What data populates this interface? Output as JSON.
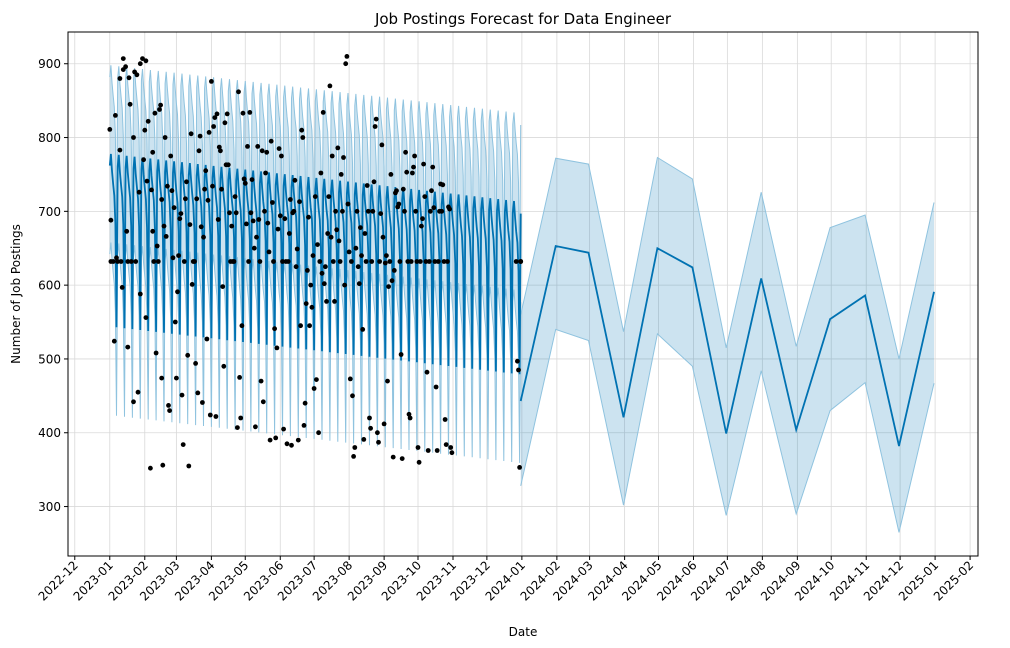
{
  "chart_data": {
    "type": "line",
    "title": "Job Postings Forecast for Data Engineer",
    "xlabel": "Date",
    "ylabel": "Number of Job Postings",
    "xlim": [
      "2022-11-25",
      "2025-02-08"
    ],
    "ylim": [
      233,
      943
    ],
    "grid": true,
    "x_ticks": [
      "2022-12",
      "2023-01",
      "2023-02",
      "2023-03",
      "2023-04",
      "2023-05",
      "2023-06",
      "2023-07",
      "2023-08",
      "2023-09",
      "2023-10",
      "2023-11",
      "2023-12",
      "2024-01",
      "2024-02",
      "2024-03",
      "2024-04",
      "2024-05",
      "2024-06",
      "2024-07",
      "2024-08",
      "2024-09",
      "2024-10",
      "2024-11",
      "2024-12",
      "2025-01",
      "2025-02"
    ],
    "y_ticks": [
      300,
      400,
      500,
      600,
      700,
      800,
      900
    ],
    "colors": {
      "forecast_line": "#0072b2",
      "interval_fill": "#0072b2",
      "points": "#000000",
      "grid": "#d9d9d9"
    },
    "history_forecast": {
      "start": "2023-01-01",
      "end": "2023-12-31",
      "weekday_offsets": [
        117,
        133,
        110,
        92,
        77,
        39,
        -101
      ],
      "trend_start": 645,
      "trend_end": 580,
      "interval_halfwidth": 120
    },
    "future_forecast": [
      {
        "date": "2023-12-31",
        "yhat": 443,
        "lower": 328,
        "upper": 560
      },
      {
        "date": "2024-01-31",
        "yhat": 653,
        "lower": 540,
        "upper": 772
      },
      {
        "date": "2024-02-29",
        "yhat": 644,
        "lower": 525,
        "upper": 764
      },
      {
        "date": "2024-03-31",
        "yhat": 421,
        "lower": 302,
        "upper": 537
      },
      {
        "date": "2024-04-30",
        "yhat": 650,
        "lower": 534,
        "upper": 773
      },
      {
        "date": "2024-05-31",
        "yhat": 624,
        "lower": 490,
        "upper": 744
      },
      {
        "date": "2024-06-30",
        "yhat": 399,
        "lower": 288,
        "upper": 515
      },
      {
        "date": "2024-07-31",
        "yhat": 609,
        "lower": 484,
        "upper": 726
      },
      {
        "date": "2024-08-31",
        "yhat": 404,
        "lower": 290,
        "upper": 517
      },
      {
        "date": "2024-09-30",
        "yhat": 554,
        "lower": 430,
        "upper": 678
      },
      {
        "date": "2024-10-31",
        "yhat": 586,
        "lower": 468,
        "upper": 695
      },
      {
        "date": "2024-11-30",
        "yhat": 382,
        "lower": 265,
        "upper": 500
      },
      {
        "date": "2024-12-31",
        "yhat": 591,
        "lower": 467,
        "upper": 712
      }
    ],
    "observed": [
      [
        "2023-01-01",
        811
      ],
      [
        "2023-01-02",
        688
      ],
      [
        "2023-01-02",
        632
      ],
      [
        "2023-01-04",
        632
      ],
      [
        "2023-01-05",
        524
      ],
      [
        "2023-01-06",
        830
      ],
      [
        "2023-01-07",
        637
      ],
      [
        "2023-01-08",
        632
      ],
      [
        "2023-01-10",
        880
      ],
      [
        "2023-01-10",
        783
      ],
      [
        "2023-01-11",
        632
      ],
      [
        "2023-01-12",
        597
      ],
      [
        "2023-01-13",
        892
      ],
      [
        "2023-01-13",
        907
      ],
      [
        "2023-01-15",
        896
      ],
      [
        "2023-01-16",
        673
      ],
      [
        "2023-01-17",
        516
      ],
      [
        "2023-01-17",
        632
      ],
      [
        "2023-01-18",
        881
      ],
      [
        "2023-01-19",
        845
      ],
      [
        "2023-01-20",
        632
      ],
      [
        "2023-01-22",
        800
      ],
      [
        "2023-01-22",
        442
      ],
      [
        "2023-01-23",
        889
      ],
      [
        "2023-01-24",
        632
      ],
      [
        "2023-01-25",
        885
      ],
      [
        "2023-01-26",
        455
      ],
      [
        "2023-01-27",
        726
      ],
      [
        "2023-01-28",
        900
      ],
      [
        "2023-01-28",
        588
      ],
      [
        "2023-01-30",
        907
      ],
      [
        "2023-01-31",
        770
      ],
      [
        "2023-02-01",
        810
      ],
      [
        "2023-02-02",
        904
      ],
      [
        "2023-02-02",
        556
      ],
      [
        "2023-02-03",
        741
      ],
      [
        "2023-02-04",
        822
      ],
      [
        "2023-02-06",
        352
      ],
      [
        "2023-02-07",
        729
      ],
      [
        "2023-02-08",
        673
      ],
      [
        "2023-02-08",
        780
      ],
      [
        "2023-02-09",
        632
      ],
      [
        "2023-02-10",
        833
      ],
      [
        "2023-02-11",
        508
      ],
      [
        "2023-02-12",
        653
      ],
      [
        "2023-02-13",
        632
      ],
      [
        "2023-02-14",
        838
      ],
      [
        "2023-02-15",
        844
      ],
      [
        "2023-02-16",
        474
      ],
      [
        "2023-02-16",
        716
      ],
      [
        "2023-02-17",
        356
      ],
      [
        "2023-02-18",
        680
      ],
      [
        "2023-02-19",
        800
      ],
      [
        "2023-02-20",
        666
      ],
      [
        "2023-02-21",
        734
      ],
      [
        "2023-02-22",
        437
      ],
      [
        "2023-02-23",
        430
      ],
      [
        "2023-02-24",
        775
      ],
      [
        "2023-02-25",
        728
      ],
      [
        "2023-02-26",
        637
      ],
      [
        "2023-02-27",
        705
      ],
      [
        "2023-02-28",
        550
      ],
      [
        "2023-03-01",
        474
      ],
      [
        "2023-03-02",
        591
      ],
      [
        "2023-03-03",
        640
      ],
      [
        "2023-03-04",
        690
      ],
      [
        "2023-03-05",
        697
      ],
      [
        "2023-03-06",
        451
      ],
      [
        "2023-03-07",
        384
      ],
      [
        "2023-03-08",
        632
      ],
      [
        "2023-03-09",
        717
      ],
      [
        "2023-03-10",
        740
      ],
      [
        "2023-03-11",
        505
      ],
      [
        "2023-03-12",
        355
      ],
      [
        "2023-03-13",
        682
      ],
      [
        "2023-03-14",
        805
      ],
      [
        "2023-03-15",
        601
      ],
      [
        "2023-03-16",
        632
      ],
      [
        "2023-03-17",
        632
      ],
      [
        "2023-03-18",
        494
      ],
      [
        "2023-03-19",
        717
      ],
      [
        "2023-03-20",
        454
      ],
      [
        "2023-03-21",
        782
      ],
      [
        "2023-03-22",
        802
      ],
      [
        "2023-03-23",
        679
      ],
      [
        "2023-03-24",
        441
      ],
      [
        "2023-03-25",
        665
      ],
      [
        "2023-03-26",
        730
      ],
      [
        "2023-03-27",
        755
      ],
      [
        "2023-03-28",
        527
      ],
      [
        "2023-03-29",
        715
      ],
      [
        "2023-03-30",
        807
      ],
      [
        "2023-03-31",
        424
      ],
      [
        "2023-04-01",
        876
      ],
      [
        "2023-04-02",
        734
      ],
      [
        "2023-04-03",
        815
      ],
      [
        "2023-04-04",
        827
      ],
      [
        "2023-04-05",
        422
      ],
      [
        "2023-04-06",
        832
      ],
      [
        "2023-04-07",
        689
      ],
      [
        "2023-04-08",
        787
      ],
      [
        "2023-04-09",
        782
      ],
      [
        "2023-04-10",
        730
      ],
      [
        "2023-04-11",
        598
      ],
      [
        "2023-04-12",
        490
      ],
      [
        "2023-04-13",
        820
      ],
      [
        "2023-04-14",
        763
      ],
      [
        "2023-04-15",
        832
      ],
      [
        "2023-04-16",
        763
      ],
      [
        "2023-04-17",
        698
      ],
      [
        "2023-04-18",
        632
      ],
      [
        "2023-04-19",
        680
      ],
      [
        "2023-04-20",
        632
      ],
      [
        "2023-04-21",
        632
      ],
      [
        "2023-04-22",
        720
      ],
      [
        "2023-04-23",
        698
      ],
      [
        "2023-04-24",
        407
      ],
      [
        "2023-04-25",
        862
      ],
      [
        "2023-04-26",
        475
      ],
      [
        "2023-04-27",
        420
      ],
      [
        "2023-04-28",
        545
      ],
      [
        "2023-04-29",
        833
      ],
      [
        "2023-04-30",
        744
      ],
      [
        "2023-05-01",
        738
      ],
      [
        "2023-05-02",
        683
      ],
      [
        "2023-05-03",
        788
      ],
      [
        "2023-05-04",
        632
      ],
      [
        "2023-05-05",
        834
      ],
      [
        "2023-05-06",
        698
      ],
      [
        "2023-05-07",
        743
      ],
      [
        "2023-05-08",
        687
      ],
      [
        "2023-05-09",
        650
      ],
      [
        "2023-05-10",
        408
      ],
      [
        "2023-05-11",
        665
      ],
      [
        "2023-05-12",
        788
      ],
      [
        "2023-05-13",
        689
      ],
      [
        "2023-05-14",
        632
      ],
      [
        "2023-05-15",
        470
      ],
      [
        "2023-05-16",
        782
      ],
      [
        "2023-05-17",
        442
      ],
      [
        "2023-05-18",
        700
      ],
      [
        "2023-05-19",
        752
      ],
      [
        "2023-05-20",
        780
      ],
      [
        "2023-05-21",
        684
      ],
      [
        "2023-05-22",
        645
      ],
      [
        "2023-05-23",
        390
      ],
      [
        "2023-05-24",
        795
      ],
      [
        "2023-05-25",
        712
      ],
      [
        "2023-05-26",
        632
      ],
      [
        "2023-05-27",
        541
      ],
      [
        "2023-05-28",
        393
      ],
      [
        "2023-05-29",
        515
      ],
      [
        "2023-05-30",
        676
      ],
      [
        "2023-05-31",
        785
      ],
      [
        "2023-06-01",
        694
      ],
      [
        "2023-06-02",
        775
      ],
      [
        "2023-06-03",
        632
      ],
      [
        "2023-06-04",
        405
      ],
      [
        "2023-06-05",
        690
      ],
      [
        "2023-06-06",
        632
      ],
      [
        "2023-06-07",
        385
      ],
      [
        "2023-06-08",
        632
      ],
      [
        "2023-06-09",
        670
      ],
      [
        "2023-06-10",
        716
      ],
      [
        "2023-06-11",
        383
      ],
      [
        "2023-06-12",
        698
      ],
      [
        "2023-06-13",
        700
      ],
      [
        "2023-06-14",
        742
      ],
      [
        "2023-06-15",
        625
      ],
      [
        "2023-06-16",
        649
      ],
      [
        "2023-06-17",
        390
      ],
      [
        "2023-06-18",
        713
      ],
      [
        "2023-06-19",
        545
      ],
      [
        "2023-06-20",
        810
      ],
      [
        "2023-06-21",
        800
      ],
      [
        "2023-06-22",
        410
      ],
      [
        "2023-06-23",
        440
      ],
      [
        "2023-06-24",
        575
      ],
      [
        "2023-06-25",
        620
      ],
      [
        "2023-06-26",
        692
      ],
      [
        "2023-06-27",
        545
      ],
      [
        "2023-06-28",
        600
      ],
      [
        "2023-06-29",
        570
      ],
      [
        "2023-06-30",
        640
      ],
      [
        "2023-07-01",
        460
      ],
      [
        "2023-07-02",
        720
      ],
      [
        "2023-07-03",
        472
      ],
      [
        "2023-07-04",
        655
      ],
      [
        "2023-07-05",
        400
      ],
      [
        "2023-07-06",
        632
      ],
      [
        "2023-07-07",
        752
      ],
      [
        "2023-07-08",
        616
      ],
      [
        "2023-07-09",
        834
      ],
      [
        "2023-07-10",
        602
      ],
      [
        "2023-07-11",
        625
      ],
      [
        "2023-07-12",
        578
      ],
      [
        "2023-07-13",
        670
      ],
      [
        "2023-07-14",
        720
      ],
      [
        "2023-07-15",
        870
      ],
      [
        "2023-07-16",
        665
      ],
      [
        "2023-07-17",
        775
      ],
      [
        "2023-07-18",
        632
      ],
      [
        "2023-07-19",
        578
      ],
      [
        "2023-07-20",
        700
      ],
      [
        "2023-07-21",
        675
      ],
      [
        "2023-07-22",
        786
      ],
      [
        "2023-07-23",
        660
      ],
      [
        "2023-07-24",
        632
      ],
      [
        "2023-07-25",
        750
      ],
      [
        "2023-07-26",
        700
      ],
      [
        "2023-07-27",
        773
      ],
      [
        "2023-07-28",
        600
      ],
      [
        "2023-07-29",
        900
      ],
      [
        "2023-07-30",
        910
      ],
      [
        "2023-07-31",
        710
      ],
      [
        "2023-08-01",
        645
      ],
      [
        "2023-08-02",
        473
      ],
      [
        "2023-08-03",
        632
      ],
      [
        "2023-08-04",
        450
      ],
      [
        "2023-08-05",
        368
      ],
      [
        "2023-08-06",
        380
      ],
      [
        "2023-08-07",
        650
      ],
      [
        "2023-08-08",
        700
      ],
      [
        "2023-08-09",
        625
      ],
      [
        "2023-08-10",
        602
      ],
      [
        "2023-08-11",
        678
      ],
      [
        "2023-08-12",
        640
      ],
      [
        "2023-08-13",
        540
      ],
      [
        "2023-08-14",
        391
      ],
      [
        "2023-08-15",
        670
      ],
      [
        "2023-08-16",
        632
      ],
      [
        "2023-08-17",
        735
      ],
      [
        "2023-08-18",
        700
      ],
      [
        "2023-08-19",
        420
      ],
      [
        "2023-08-20",
        406
      ],
      [
        "2023-08-21",
        632
      ],
      [
        "2023-08-22",
        700
      ],
      [
        "2023-08-23",
        740
      ],
      [
        "2023-08-24",
        815
      ],
      [
        "2023-08-25",
        825
      ],
      [
        "2023-08-26",
        400
      ],
      [
        "2023-08-27",
        387
      ],
      [
        "2023-08-28",
        632
      ],
      [
        "2023-08-29",
        697
      ],
      [
        "2023-08-30",
        790
      ],
      [
        "2023-08-31",
        665
      ],
      [
        "2023-09-01",
        412
      ],
      [
        "2023-09-02",
        630
      ],
      [
        "2023-09-03",
        640
      ],
      [
        "2023-09-04",
        470
      ],
      [
        "2023-09-05",
        598
      ],
      [
        "2023-09-06",
        632
      ],
      [
        "2023-09-07",
        750
      ],
      [
        "2023-09-08",
        606
      ],
      [
        "2023-09-09",
        367
      ],
      [
        "2023-09-10",
        620
      ],
      [
        "2023-09-11",
        725
      ],
      [
        "2023-09-12",
        728
      ],
      [
        "2023-09-13",
        706
      ],
      [
        "2023-09-14",
        710
      ],
      [
        "2023-09-15",
        632
      ],
      [
        "2023-09-16",
        506
      ],
      [
        "2023-09-17",
        365
      ],
      [
        "2023-09-18",
        730
      ],
      [
        "2023-09-19",
        700
      ],
      [
        "2023-09-20",
        780
      ],
      [
        "2023-09-21",
        753
      ],
      [
        "2023-09-22",
        632
      ],
      [
        "2023-09-23",
        425
      ],
      [
        "2023-09-24",
        420
      ],
      [
        "2023-09-25",
        632
      ],
      [
        "2023-09-26",
        752
      ],
      [
        "2023-09-27",
        760
      ],
      [
        "2023-09-28",
        775
      ],
      [
        "2023-09-29",
        700
      ],
      [
        "2023-09-30",
        632
      ],
      [
        "2023-10-01",
        380
      ],
      [
        "2023-10-02",
        360
      ],
      [
        "2023-10-03",
        632
      ],
      [
        "2023-10-04",
        680
      ],
      [
        "2023-10-05",
        690
      ],
      [
        "2023-10-06",
        764
      ],
      [
        "2023-10-07",
        720
      ],
      [
        "2023-10-08",
        632
      ],
      [
        "2023-10-09",
        482
      ],
      [
        "2023-10-10",
        376
      ],
      [
        "2023-10-11",
        632
      ],
      [
        "2023-10-12",
        700
      ],
      [
        "2023-10-13",
        728
      ],
      [
        "2023-10-14",
        760
      ],
      [
        "2023-10-15",
        705
      ],
      [
        "2023-10-16",
        632
      ],
      [
        "2023-10-17",
        462
      ],
      [
        "2023-10-18",
        376
      ],
      [
        "2023-10-19",
        632
      ],
      [
        "2023-10-20",
        700
      ],
      [
        "2023-10-21",
        737
      ],
      [
        "2023-10-22",
        700
      ],
      [
        "2023-10-23",
        736
      ],
      [
        "2023-10-24",
        632
      ],
      [
        "2023-10-25",
        418
      ],
      [
        "2023-10-26",
        384
      ],
      [
        "2023-10-27",
        632
      ],
      [
        "2023-10-28",
        706
      ],
      [
        "2023-10-29",
        703
      ],
      [
        "2023-10-30",
        380
      ],
      [
        "2023-10-31",
        373
      ],
      [
        "2023-12-27",
        632
      ],
      [
        "2023-12-28",
        497
      ],
      [
        "2023-12-29",
        485
      ],
      [
        "2023-12-30",
        353
      ],
      [
        "2023-12-31",
        632
      ],
      [
        "2023-12-31",
        632
      ]
    ]
  }
}
